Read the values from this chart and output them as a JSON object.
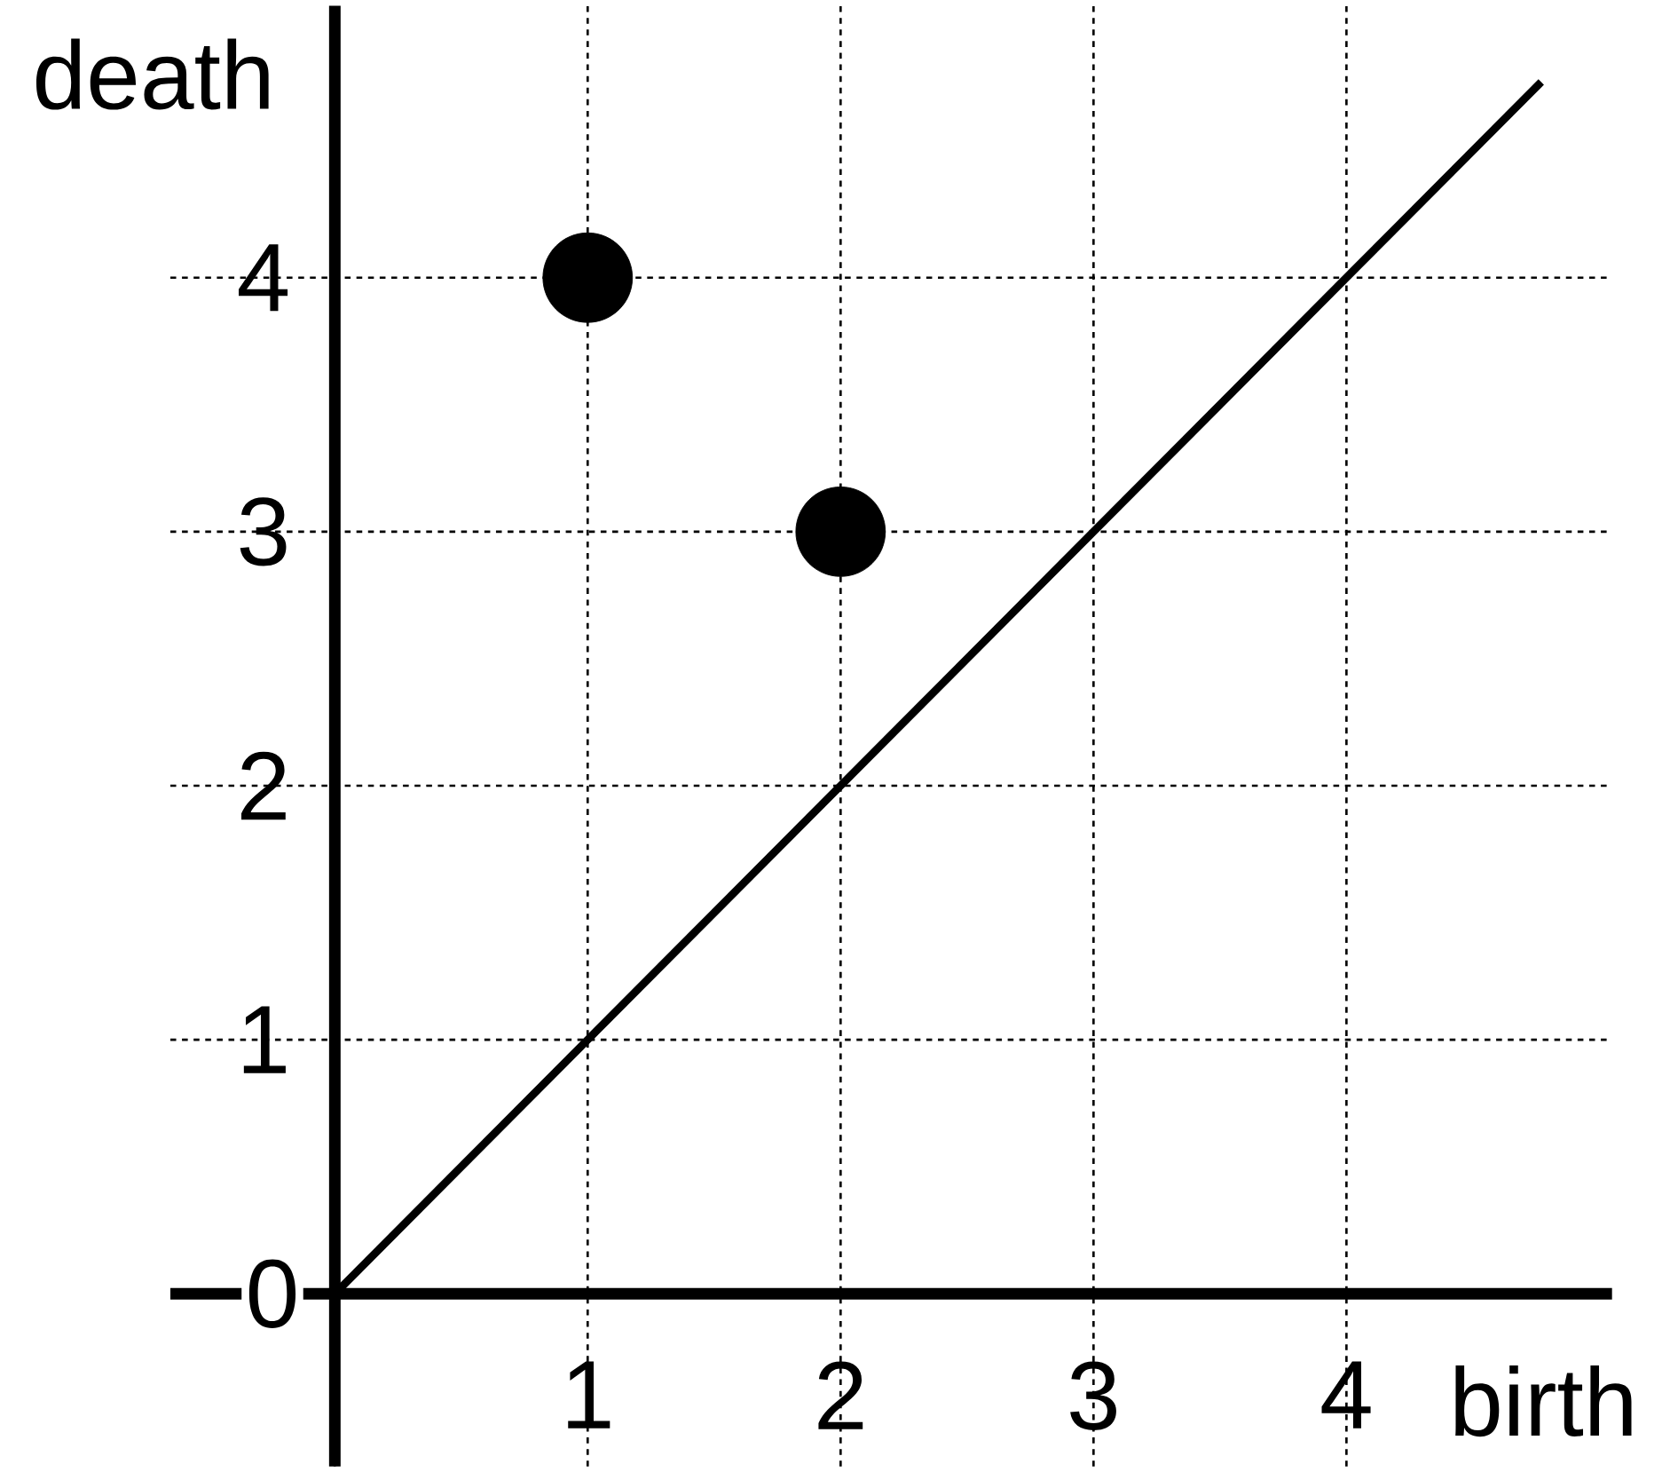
{
  "chart_data": {
    "type": "scatter",
    "xlabel": "birth",
    "ylabel": "death",
    "series": [
      {
        "x": [
          1,
          2
        ],
        "values": [
          4,
          3
        ],
        "color": "#000000",
        "marker": "circle"
      },
      {
        "type": "line",
        "x": [
          0,
          4.77
        ],
        "values": [
          0,
          4.77
        ],
        "color": "#000000",
        "line_style": "solid",
        "marker": "none"
      }
    ],
    "xlim": [
      -0.65,
      5.05
    ],
    "ylim": [
      -0.68,
      5.07
    ],
    "xticks": [
      {
        "value": 0,
        "label": null
      },
      1,
      2,
      3,
      4
    ],
    "yticks": [
      0,
      1,
      2,
      3,
      4
    ],
    "grid": true
  }
}
